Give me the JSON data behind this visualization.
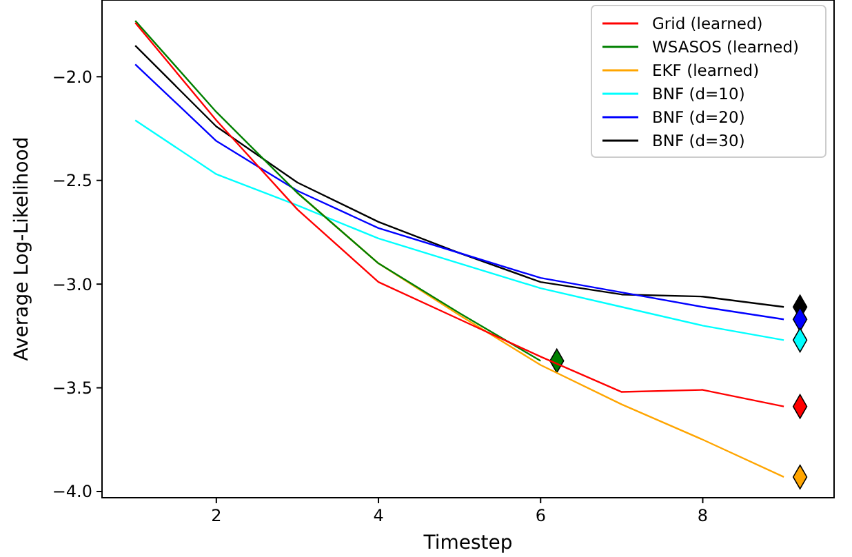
{
  "chart_data": {
    "type": "line",
    "xlabel": "Timestep",
    "ylabel": "Average Log-Likelihood",
    "x": [
      1,
      2,
      3,
      4,
      5,
      6,
      7,
      8,
      9
    ],
    "xlim": [
      0.59,
      9.62
    ],
    "ylim": [
      -4.03,
      -1.63
    ],
    "xticks": [
      2,
      4,
      6,
      8
    ],
    "yticks": [
      {
        "value": -4,
        "label": "−4.0"
      },
      {
        "value": -3.5,
        "label": "−3.5"
      },
      {
        "value": -3,
        "label": "−3.0"
      },
      {
        "value": -2.5,
        "label": "−2.5"
      },
      {
        "value": -2,
        "label": "−2.0"
      }
    ],
    "grid": false,
    "legend": "top right",
    "marker": "none",
    "line_style": "solid",
    "series": [
      {
        "name": "Grid (learned)",
        "color": "#ff0000",
        "values": [
          -1.74,
          -2.21,
          -2.64,
          -2.99,
          -3.17,
          -3.35,
          -3.52,
          -3.51,
          -3.59
        ]
      },
      {
        "name": "WSASOS (learned)",
        "color": "#008000",
        "values": [
          -1.73,
          -2.17,
          -2.56,
          -2.9,
          -3.14,
          -3.37
        ],
        "x": [
          1,
          2,
          3,
          4,
          5,
          6
        ]
      },
      {
        "name": "EKF (learned)",
        "color": "#ffa500",
        "values": [
          null,
          null,
          -2.56,
          -2.9,
          -3.15,
          -3.39,
          -3.58,
          -3.75,
          -3.93
        ]
      },
      {
        "name": "BNF (d=10)",
        "color": "#00ffff",
        "values": [
          -2.21,
          -2.47,
          -2.62,
          -2.78,
          -2.9,
          -3.02,
          -3.11,
          -3.2,
          -3.27
        ]
      },
      {
        "name": "BNF (d=20)",
        "color": "#0000ff",
        "values": [
          -1.94,
          -2.31,
          -2.55,
          -2.73,
          -2.85,
          -2.97,
          -3.04,
          -3.11,
          -3.17
        ]
      },
      {
        "name": "BNF (d=30)",
        "color": "#000000",
        "values": [
          -1.85,
          -2.24,
          -2.51,
          -2.7,
          -2.85,
          -2.99,
          -3.05,
          -3.06,
          -3.11
        ]
      },
      {
        "type": "scatter",
        "marker": "diamond",
        "x": [
          6.2,
          9.2,
          9.2,
          9.2,
          9.2,
          9.2
        ],
        "values": [
          -3.37,
          -3.59,
          -3.93,
          -3.27,
          -3.17,
          -3.11
        ],
        "colors": [
          "#008000",
          "#ff0000",
          "#ffa500",
          "#00ffff",
          "#0000ff",
          "#000000"
        ]
      }
    ]
  }
}
